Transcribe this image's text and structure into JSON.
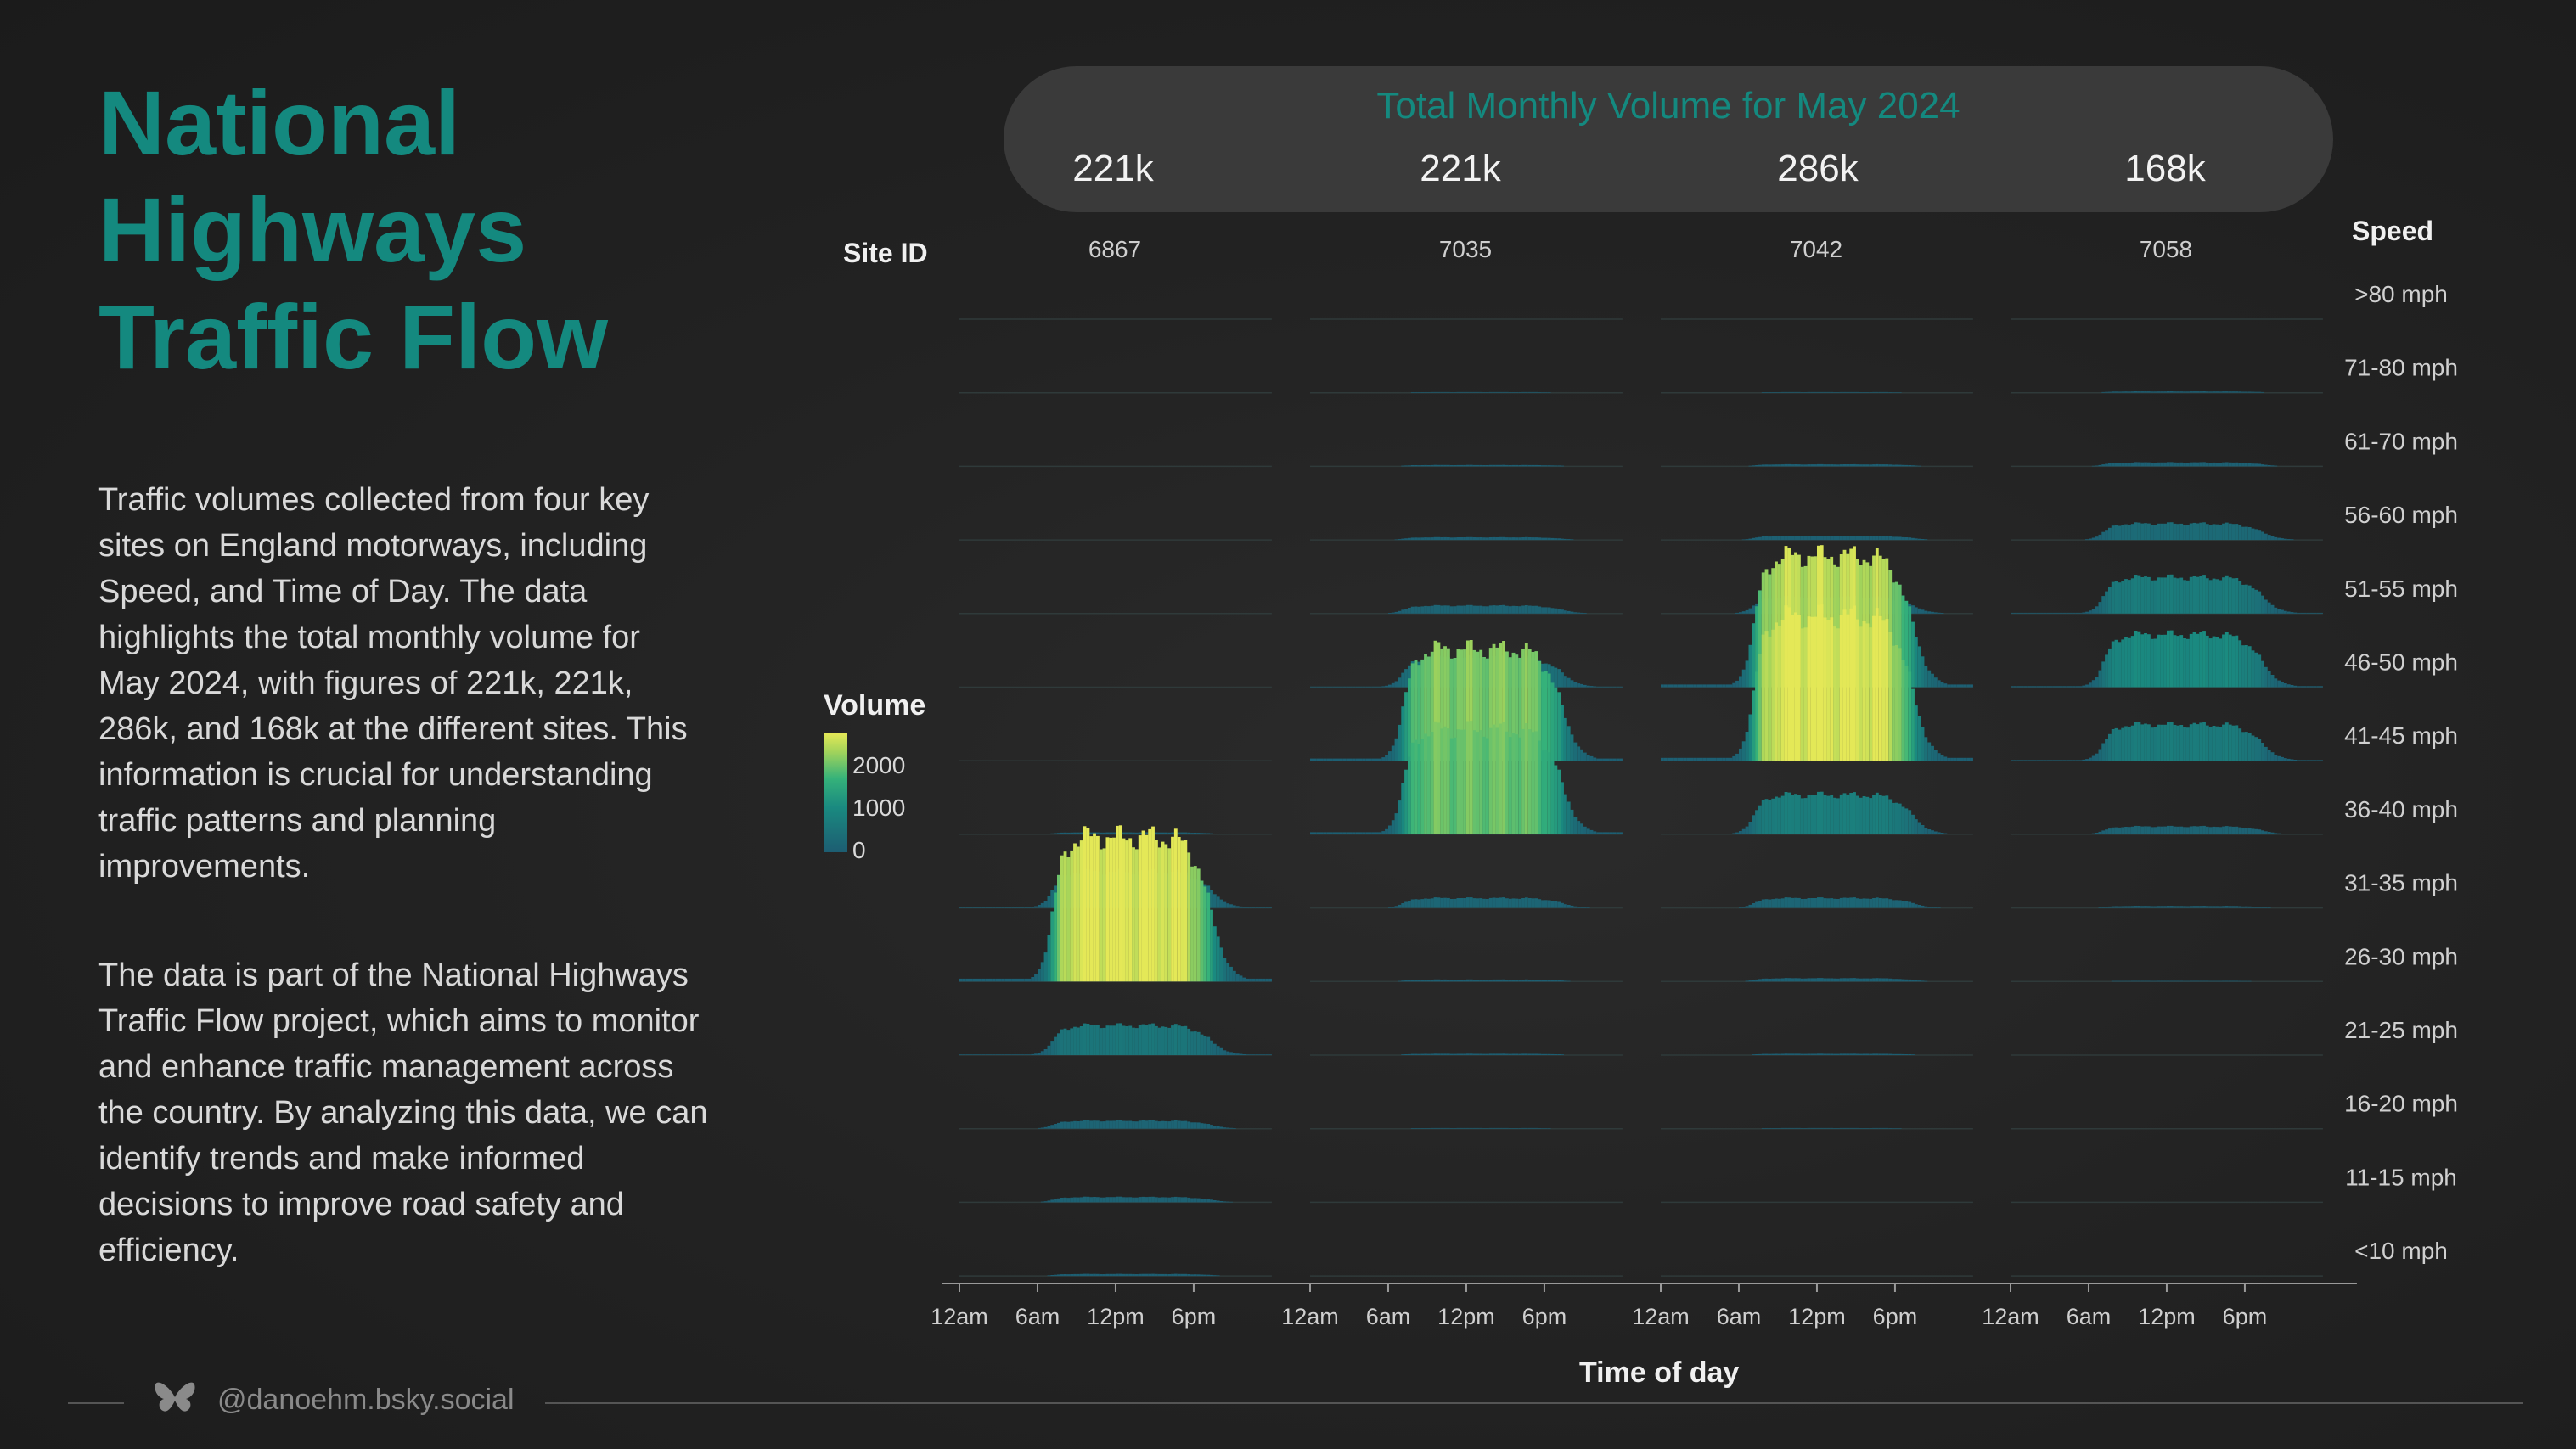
{
  "title": "National Highways Traffic Flow",
  "paragraphs": {
    "p1": "Traffic volumes collected from four key sites on England motorways, including Speed, and Time of Day. The data highlights the total monthly volume for May 2024, with figures of 221k, 221k, 286k, and 168k at the different sites. This information is crucial for understanding traffic patterns and planning improvements.",
    "p2": "The data is part of the National Highways Traffic Flow project, which aims to monitor and enhance traffic management across the country. By analyzing this data, we can identify trends and make informed decisions to improve road safety and efficiency."
  },
  "banner": {
    "title": "Total Monthly Volume for May 2024",
    "totals": [
      "221k",
      "221k",
      "286k",
      "168k"
    ]
  },
  "site_id_label": "Site ID",
  "speed_label": "Speed",
  "legend": {
    "title": "Volume",
    "ticks": [
      "2000",
      "1000",
      "0"
    ]
  },
  "footer": {
    "handle": "@danoehm.bsky.social",
    "icon": "butterfly-icon"
  },
  "colors": {
    "accent": "#14897f",
    "low": "#1d5d72",
    "mid": "#35b27a",
    "high": "#e4e857"
  },
  "chart_data": {
    "type": "area",
    "xlabel": "Time of day",
    "ylabel": "Speed",
    "x_ticks": [
      "12am",
      "6am",
      "12pm",
      "6pm"
    ],
    "x_range_hours": [
      0,
      24
    ],
    "speed_bands": [
      ">80 mph",
      "71-80 mph",
      "61-70 mph",
      "56-60 mph",
      "51-55 mph",
      "46-50 mph",
      "41-45 mph",
      "36-40 mph",
      "31-35 mph",
      "26-30 mph",
      "21-25 mph",
      "16-20 mph",
      "11-15 mph",
      "<10 mph"
    ],
    "sites": [
      {
        "site_id": "6867",
        "total_volume": "221k",
        "peak_volume_by_band": [
          0,
          0,
          0,
          0,
          0,
          0,
          0,
          30,
          550,
          2200,
          450,
          120,
          80,
          30
        ]
      },
      {
        "site_id": "7035",
        "total_volume": "221k",
        "peak_volume_by_band": [
          0,
          10,
          20,
          40,
          120,
          450,
          1700,
          1600,
          150,
          30,
          20,
          10,
          5,
          0
        ]
      },
      {
        "site_id": "7042",
        "total_volume": "286k",
        "peak_volume_by_band": [
          0,
          10,
          30,
          60,
          250,
          2000,
          2200,
          600,
          150,
          50,
          20,
          10,
          5,
          0
        ]
      },
      {
        "site_id": "7058",
        "total_volume": "168k",
        "peak_volume_by_band": [
          0,
          20,
          60,
          250,
          550,
          800,
          550,
          120,
          30,
          10,
          5,
          0,
          0,
          0
        ]
      }
    ]
  }
}
